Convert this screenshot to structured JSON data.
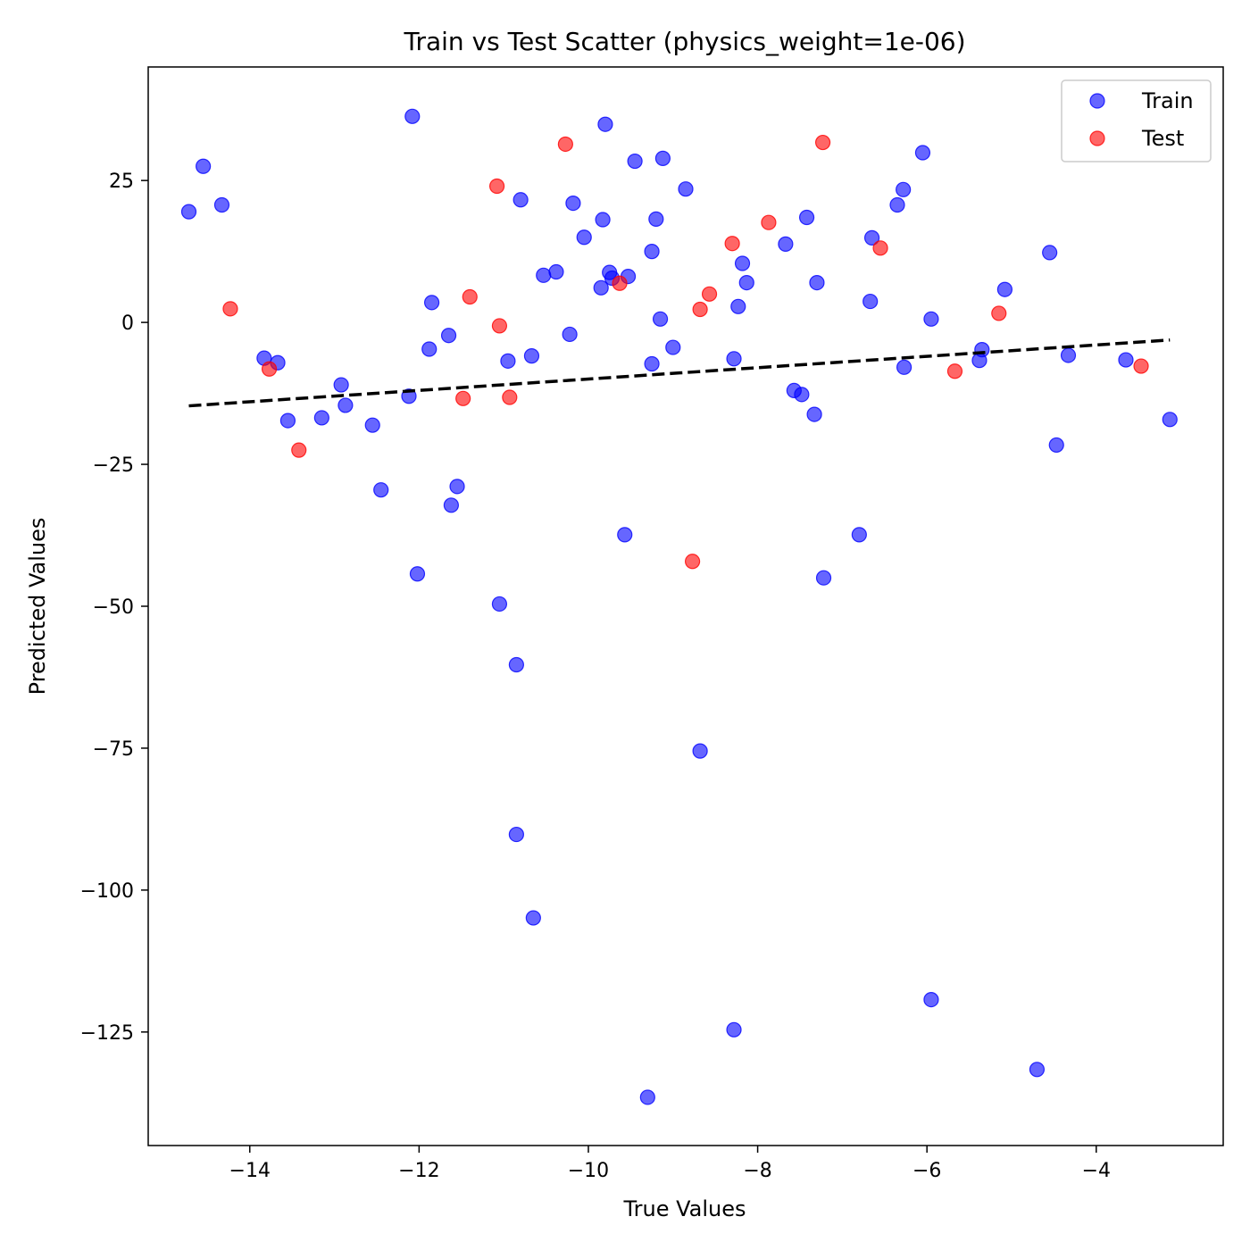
{
  "chart_data": {
    "type": "scatter",
    "title": "Train vs Test Scatter (physics_weight=1e-06)",
    "xlabel": "True Values",
    "ylabel": "Predicted Values",
    "xlim": [
      -15.2,
      -2.5
    ],
    "ylim": [
      -145,
      45
    ],
    "xticks": [
      -14,
      -12,
      -10,
      -8,
      -6,
      -4
    ],
    "yticks": [
      25,
      0,
      -25,
      -50,
      -75,
      -100,
      -125
    ],
    "xtick_labels": [
      "−14",
      "−12",
      "−10",
      "−8",
      "−6",
      "−4"
    ],
    "ytick_labels": [
      "25",
      "0",
      "−25",
      "−50",
      "−75",
      "−100",
      "−125"
    ],
    "grid": false,
    "legend_position": "top-right",
    "series": [
      {
        "name": "Train",
        "color": "#0000ff",
        "alpha": 0.6,
        "points": [
          [
            -14.72,
            19.5
          ],
          [
            -14.55,
            27.5
          ],
          [
            -14.33,
            20.7
          ],
          [
            -13.83,
            -6.3
          ],
          [
            -13.67,
            -7.1
          ],
          [
            -13.55,
            -17.3
          ],
          [
            -13.15,
            -16.8
          ],
          [
            -12.92,
            -11.0
          ],
          [
            -12.87,
            -14.6
          ],
          [
            -12.55,
            -18.1
          ],
          [
            -12.45,
            -29.5
          ],
          [
            -12.12,
            -13.0
          ],
          [
            -12.08,
            36.3
          ],
          [
            -12.02,
            -44.3
          ],
          [
            -11.88,
            -4.7
          ],
          [
            -11.85,
            3.5
          ],
          [
            -11.65,
            -2.3
          ],
          [
            -11.62,
            -32.2
          ],
          [
            -11.55,
            -28.9
          ],
          [
            -11.05,
            -49.6
          ],
          [
            -10.95,
            -6.8
          ],
          [
            -10.85,
            -60.3
          ],
          [
            -10.85,
            -90.2
          ],
          [
            -10.8,
            21.6
          ],
          [
            -10.67,
            -5.9
          ],
          [
            -10.65,
            -104.9
          ],
          [
            -10.53,
            8.3
          ],
          [
            -10.38,
            8.9
          ],
          [
            -10.22,
            -2.1
          ],
          [
            -10.18,
            21.0
          ],
          [
            -10.05,
            15.0
          ],
          [
            -9.85,
            6.1
          ],
          [
            -9.83,
            18.1
          ],
          [
            -9.8,
            34.9
          ],
          [
            -9.75,
            8.8
          ],
          [
            -9.72,
            7.8
          ],
          [
            -9.57,
            -37.4
          ],
          [
            -9.53,
            8.1
          ],
          [
            -9.45,
            28.4
          ],
          [
            -9.3,
            -136.5
          ],
          [
            -9.25,
            12.5
          ],
          [
            -9.25,
            -7.3
          ],
          [
            -9.2,
            18.2
          ],
          [
            -9.15,
            0.6
          ],
          [
            -9.12,
            28.9
          ],
          [
            -9.0,
            -4.4
          ],
          [
            -8.85,
            23.5
          ],
          [
            -8.68,
            -75.5
          ],
          [
            -8.28,
            -6.4
          ],
          [
            -8.28,
            -124.6
          ],
          [
            -8.23,
            2.8
          ],
          [
            -8.18,
            10.4
          ],
          [
            -8.13,
            7.0
          ],
          [
            -7.67,
            13.8
          ],
          [
            -7.57,
            -12.0
          ],
          [
            -7.48,
            -12.7
          ],
          [
            -7.42,
            18.5
          ],
          [
            -7.33,
            -16.2
          ],
          [
            -7.3,
            7.0
          ],
          [
            -7.22,
            -45.0
          ],
          [
            -6.8,
            -37.4
          ],
          [
            -6.67,
            3.7
          ],
          [
            -6.65,
            14.9
          ],
          [
            -6.35,
            20.7
          ],
          [
            -6.28,
            23.4
          ],
          [
            -6.27,
            -7.9
          ],
          [
            -6.05,
            29.9
          ],
          [
            -5.95,
            0.6
          ],
          [
            -5.95,
            -119.3
          ],
          [
            -5.38,
            -6.7
          ],
          [
            -5.35,
            -4.8
          ],
          [
            -5.08,
            5.8
          ],
          [
            -4.7,
            -131.6
          ],
          [
            -4.55,
            12.3
          ],
          [
            -4.47,
            -21.6
          ],
          [
            -4.33,
            -5.8
          ],
          [
            -3.65,
            -6.6
          ],
          [
            -3.13,
            -17.1
          ]
        ]
      },
      {
        "name": "Test",
        "color": "#ff0000",
        "alpha": 0.6,
        "points": [
          [
            -14.23,
            2.4
          ],
          [
            -13.77,
            -8.2
          ],
          [
            -13.42,
            -22.5
          ],
          [
            -11.48,
            -13.4
          ],
          [
            -11.4,
            4.5
          ],
          [
            -11.08,
            24.0
          ],
          [
            -11.05,
            -0.6
          ],
          [
            -10.93,
            -13.2
          ],
          [
            -10.27,
            31.4
          ],
          [
            -9.63,
            6.9
          ],
          [
            -8.77,
            -42.1
          ],
          [
            -8.68,
            2.3
          ],
          [
            -8.57,
            5.0
          ],
          [
            -8.3,
            13.9
          ],
          [
            -7.87,
            17.6
          ],
          [
            -7.23,
            31.7
          ],
          [
            -6.55,
            13.1
          ],
          [
            -5.67,
            -8.6
          ],
          [
            -5.15,
            1.6
          ],
          [
            -3.47,
            -7.7
          ]
        ]
      }
    ],
    "fit_line": {
      "style": "dashed",
      "color": "#000000",
      "x": [
        -14.72,
        -3.13
      ],
      "y": [
        -14.7,
        -3.1
      ]
    },
    "legend": [
      "Train",
      "Test"
    ]
  }
}
